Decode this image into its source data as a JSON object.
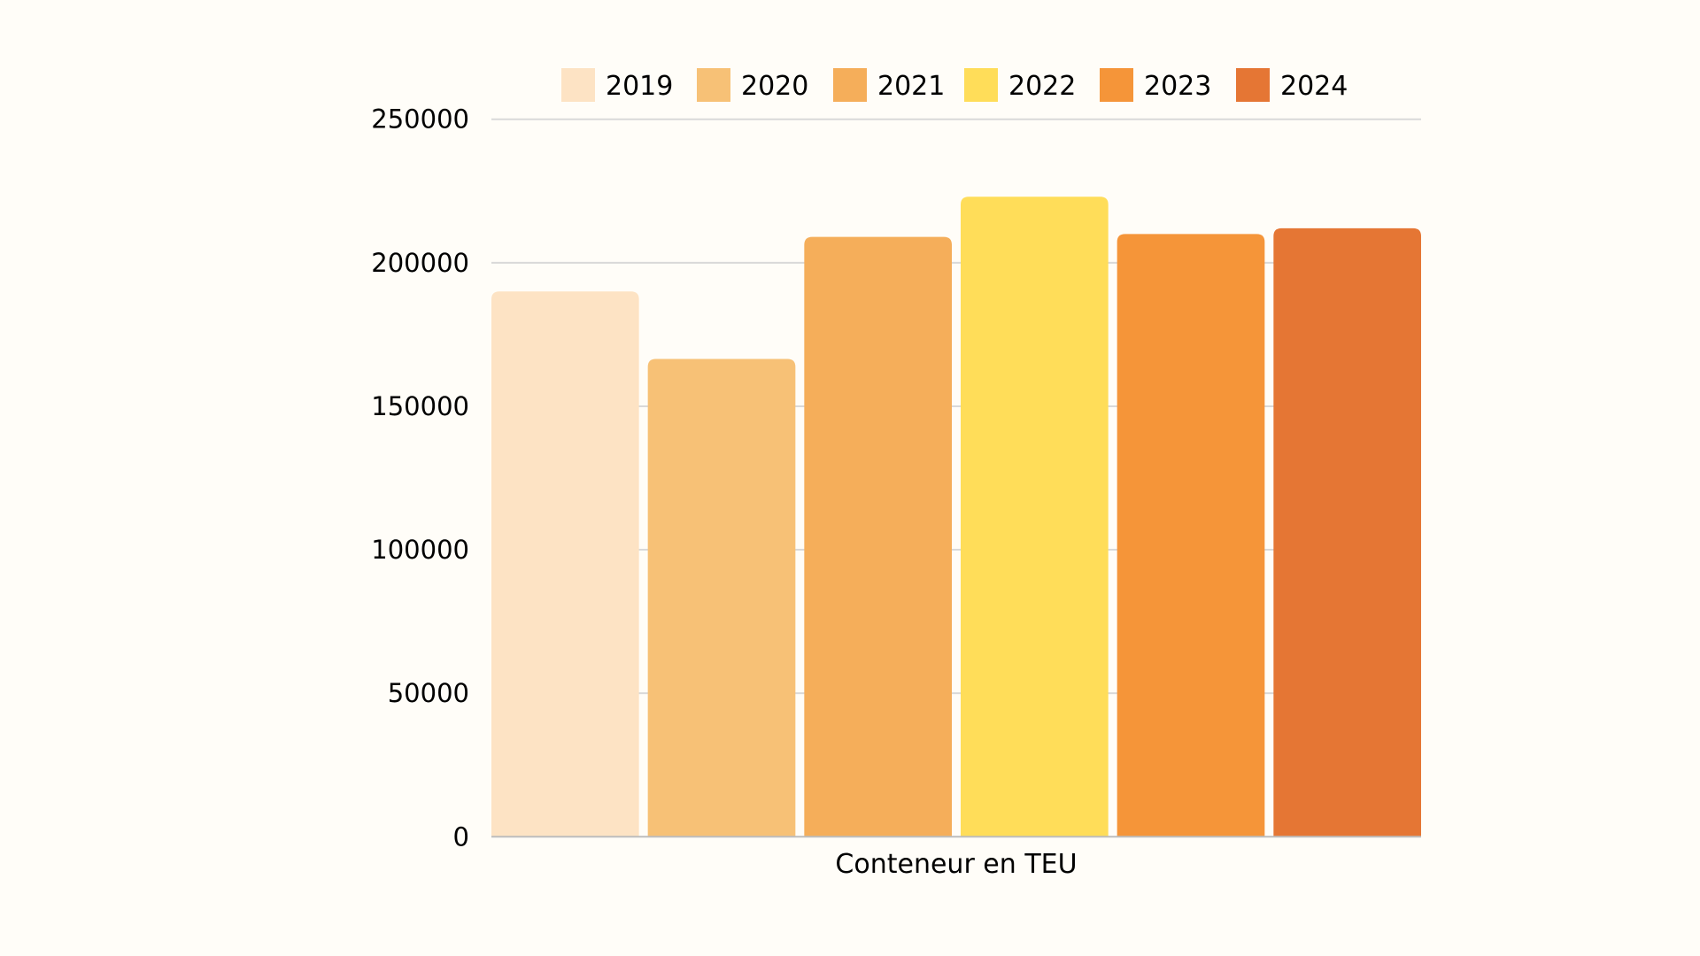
{
  "chart_data": {
    "type": "bar",
    "title": "",
    "xlabel": "Conteneur en TEU",
    "ylabel": "",
    "categories": [
      "Conteneur en TEU"
    ],
    "ylim": [
      0,
      250000
    ],
    "yticks": [
      "0",
      "50000",
      "100000",
      "150000",
      "200000",
      "250000"
    ],
    "grid": true,
    "legend_position": "top",
    "series": [
      {
        "name": "2019",
        "values": [
          190000
        ],
        "color": "#fde3c4"
      },
      {
        "name": "2020",
        "values": [
          166500
        ],
        "color": "#f7c176"
      },
      {
        "name": "2021",
        "values": [
          209000
        ],
        "color": "#f5ae5a"
      },
      {
        "name": "2022",
        "values": [
          223000
        ],
        "color": "#ffdd59"
      },
      {
        "name": "2023",
        "values": [
          210000
        ],
        "color": "#f59539"
      },
      {
        "name": "2024",
        "values": [
          212000
        ],
        "color": "#e57634"
      }
    ]
  }
}
